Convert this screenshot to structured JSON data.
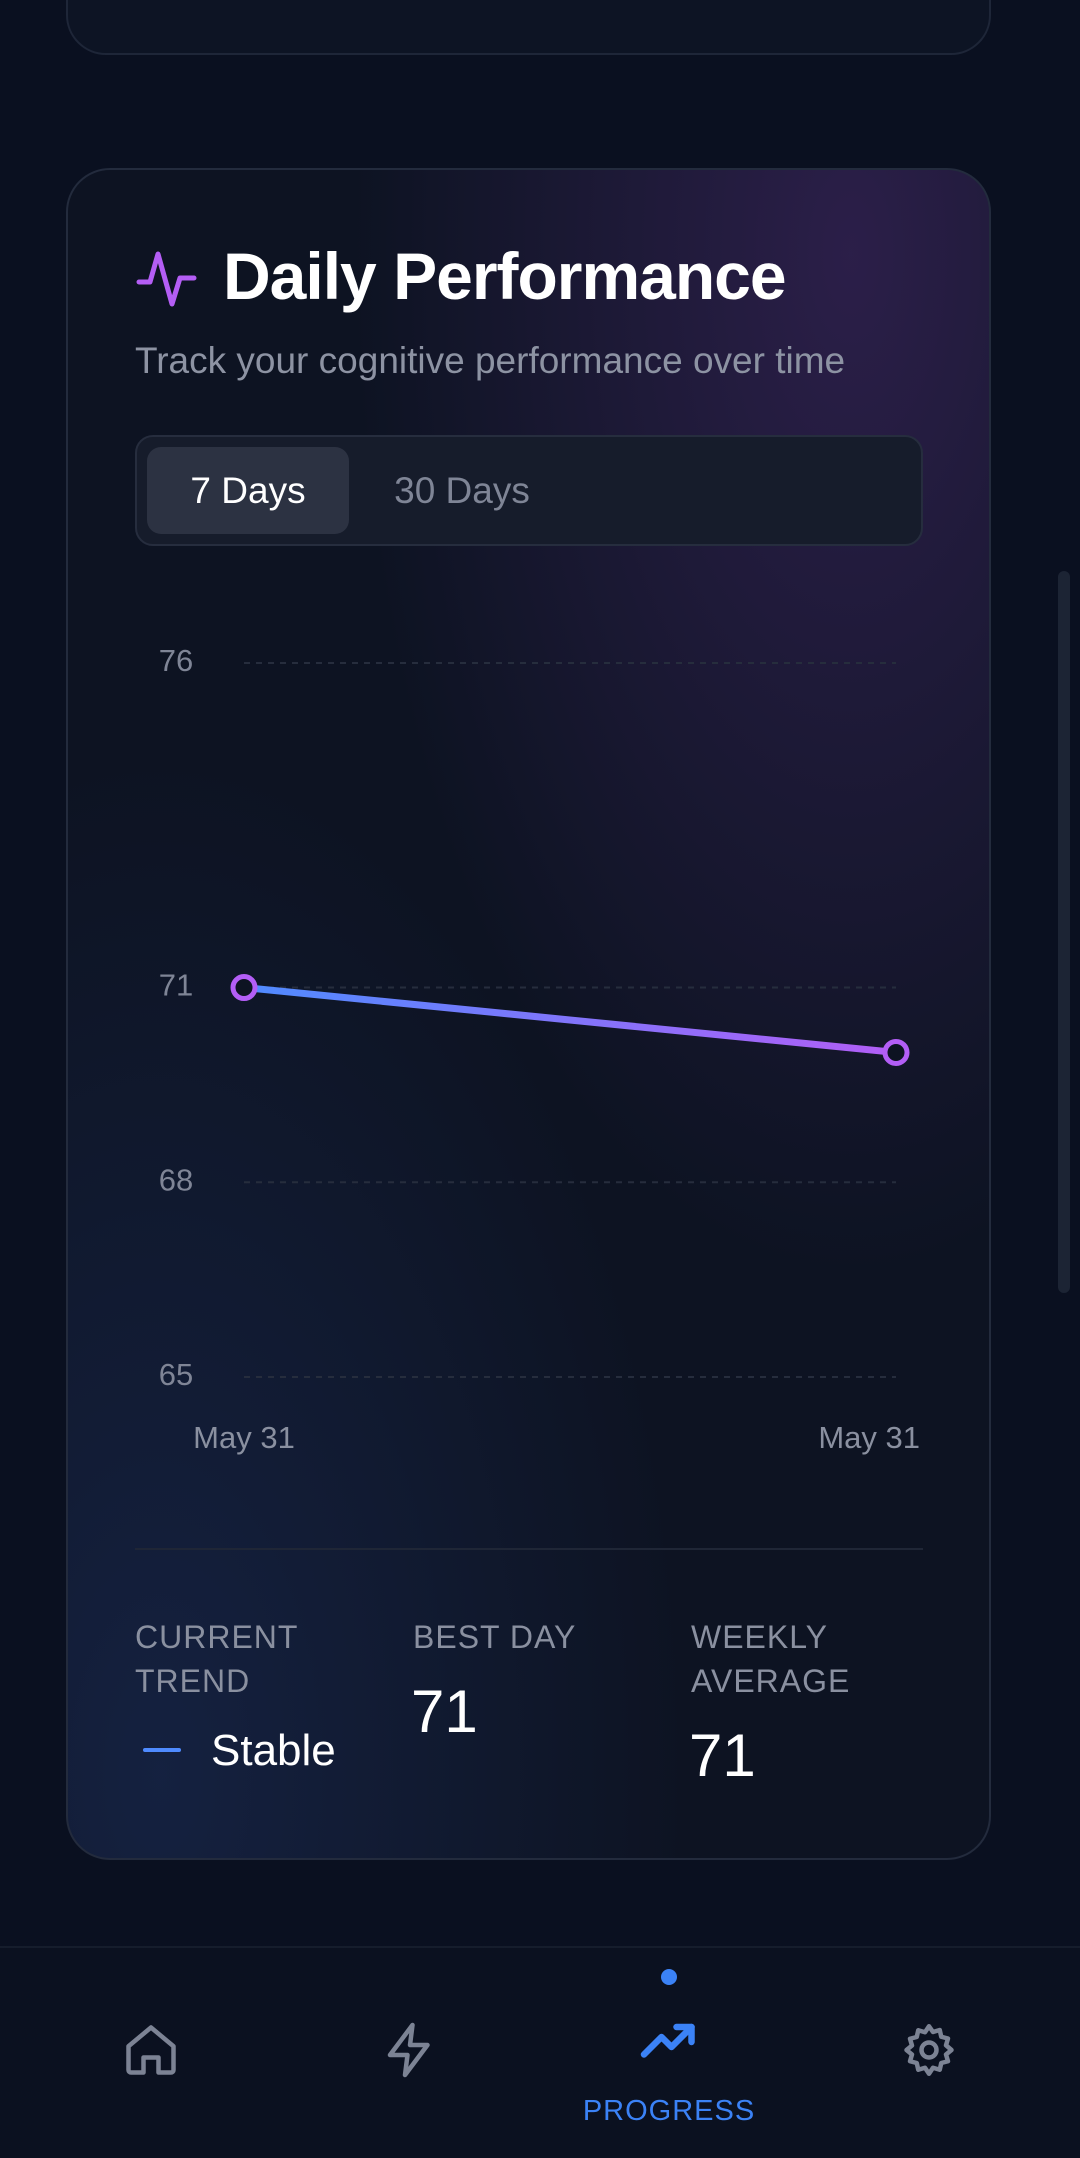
{
  "header": {
    "title": "Daily Performance",
    "subtitle": "Track your cognitive performance over time"
  },
  "tabs": [
    "7 Days",
    "30 Days"
  ],
  "chart_data": {
    "type": "line",
    "categories": [
      "May 31",
      "May 31"
    ],
    "values": [
      71,
      70
    ],
    "gradient": [
      "#4f8bff",
      "#b35ef6"
    ],
    "ylim": [
      65,
      76
    ],
    "yticks": [
      65,
      68,
      71,
      76
    ],
    "grid": true
  },
  "stats": [
    {
      "label": "CURRENT TREND",
      "value": "Stable"
    },
    {
      "label": "BEST DAY",
      "value": 71
    },
    {
      "label": "WEEKLY AVERAGE",
      "value": 71
    }
  ],
  "nav": {
    "active_label": "PROGRESS"
  }
}
